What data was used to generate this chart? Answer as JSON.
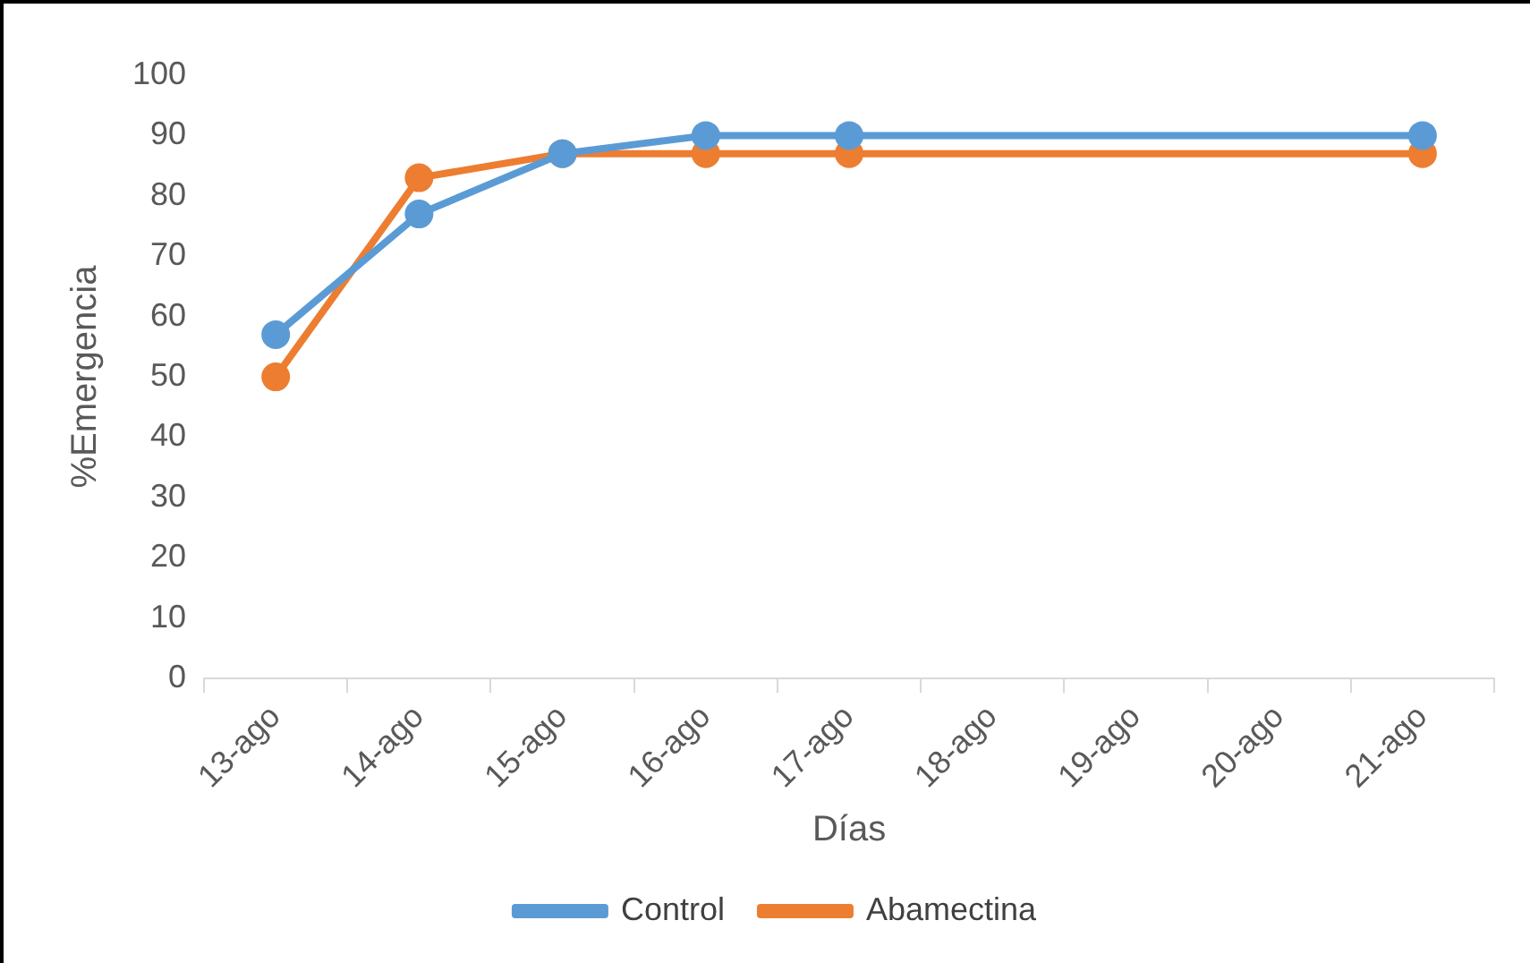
{
  "chart_data": {
    "type": "line",
    "xlabel": "Días",
    "ylabel": "%Emergencia",
    "categories": [
      "13-ago",
      "14-ago",
      "15-ago",
      "16-ago",
      "17-ago",
      "18-ago",
      "19-ago",
      "20-ago",
      "21-ago"
    ],
    "series": [
      {
        "name": "Control",
        "color": "#5b9bd5",
        "values": [
          57,
          77,
          87,
          90,
          90,
          null,
          null,
          null,
          90
        ]
      },
      {
        "name": "Abamectina",
        "color": "#ed7d31",
        "values": [
          50,
          83,
          87,
          87,
          87,
          null,
          null,
          null,
          87
        ]
      }
    ],
    "ylim": [
      0,
      100
    ],
    "yticks": [
      0,
      10,
      20,
      30,
      40,
      50,
      60,
      70,
      80,
      90,
      100
    ],
    "grid": false,
    "legend": "bottom",
    "marker": "circle",
    "line_style": "solid"
  }
}
